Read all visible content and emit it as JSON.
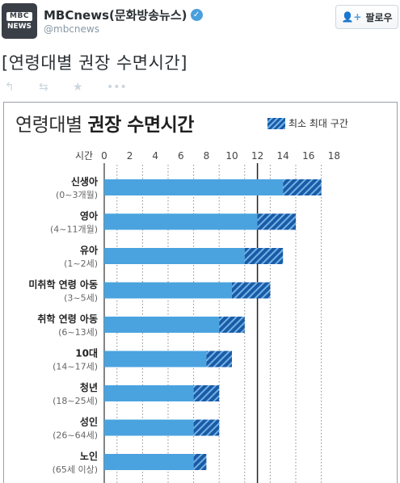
{
  "account": {
    "display_name": "MBCnews(문화방송뉴스)",
    "handle": "@mbcnews",
    "avatar_text_top": "MBC",
    "avatar_text_bottom": "NEWS",
    "verified": true
  },
  "follow_button": {
    "label": "팔로우",
    "icon": "add-person-icon"
  },
  "tweet": {
    "text": "[연령대별 권장 수면시간]"
  },
  "actions": [
    {
      "name": "reply-icon",
      "glyph": "↰"
    },
    {
      "name": "retweet-icon",
      "glyph": "⇆"
    },
    {
      "name": "favorite-icon",
      "glyph": "★"
    },
    {
      "name": "more-icon",
      "glyph": "•••"
    }
  ],
  "chart_title": {
    "normal": "연령대별 ",
    "bold": "권장 수면시간"
  },
  "chart_data": {
    "type": "bar",
    "legend": {
      "label": "최소 최대 구간",
      "placement": "top-right"
    },
    "x_axis": {
      "label": "시간",
      "ticks": [
        0,
        2,
        4,
        6,
        8,
        10,
        12,
        14,
        16,
        18
      ],
      "range": [
        0,
        18
      ],
      "reference_line": 12
    },
    "colors": {
      "base": "#4aa3df",
      "range": "#1b5aa6",
      "range_stripe": "#6fb3e6"
    },
    "categories": [
      {
        "label": "신생아",
        "sub": "(0~3개월)",
        "min": 14,
        "max": 17
      },
      {
        "label": "영아",
        "sub": "(4~11개월)",
        "min": 12,
        "max": 15
      },
      {
        "label": "유아",
        "sub": "(1~2세)",
        "min": 11,
        "max": 14
      },
      {
        "label": "미취학 연령 아동",
        "sub": "(3~5세)",
        "min": 10,
        "max": 13
      },
      {
        "label": "취학 연령 아동",
        "sub": "(6~13세)",
        "min": 9,
        "max": 11
      },
      {
        "label": "10대",
        "sub": "(14~17세)",
        "min": 8,
        "max": 10
      },
      {
        "label": "청년",
        "sub": "(18~25세)",
        "min": 7,
        "max": 9
      },
      {
        "label": "성인",
        "sub": "(26~64세)",
        "min": 7,
        "max": 9
      },
      {
        "label": "노인",
        "sub": "(65세 이상)",
        "min": 7,
        "max": 8
      }
    ]
  }
}
